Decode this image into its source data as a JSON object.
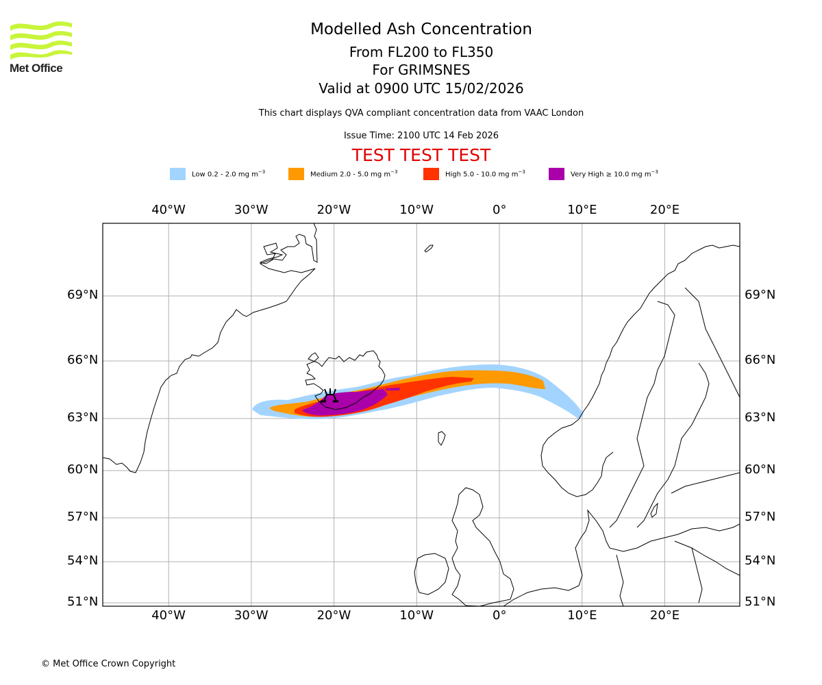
{
  "logo": {
    "text": "Met Office",
    "color": "#c8f53a"
  },
  "title": {
    "main": "Modelled Ash Concentration",
    "levels": "From FL200 to FL350",
    "volcano": "For GRIMSNES",
    "valid": "Valid at 0900 UTC 15/02/2026"
  },
  "notes": {
    "source": "This chart displays QVA compliant concentration data from VAAC London",
    "issue_time": "Issue Time: 2100 UTC 14 Feb 2026",
    "test_banner": "TEST TEST TEST"
  },
  "legend": [
    {
      "label": "Low 0.2 - 2.0 mg m",
      "sup": "−3",
      "color": "#a3d4ff"
    },
    {
      "label": "Medium 2.0 - 5.0 mg m",
      "sup": "−3",
      "color": "#ff9900"
    },
    {
      "label": "High 5.0 - 10.0 mg m",
      "sup": "−3",
      "color": "#ff3300"
    },
    {
      "label": "Very High ≥ 10.0 mg m",
      "sup": "−3",
      "color": "#aa00aa"
    }
  ],
  "map": {
    "lon_ticks": [
      "40°W",
      "30°W",
      "20°W",
      "10°W",
      "0°",
      "10°E",
      "20°E"
    ],
    "lat_ticks": [
      "69°N",
      "66°N",
      "63°N",
      "60°N",
      "57°N",
      "54°N",
      "51°N"
    ],
    "lon_values": [
      -40,
      -30,
      -20,
      -10,
      0,
      10,
      20
    ],
    "lat_values": [
      69,
      66,
      63,
      60,
      57,
      54,
      51
    ],
    "volcano_marker": "volcano-icon"
  },
  "footer": {
    "copyright": "© Met Office Crown Copyright"
  }
}
